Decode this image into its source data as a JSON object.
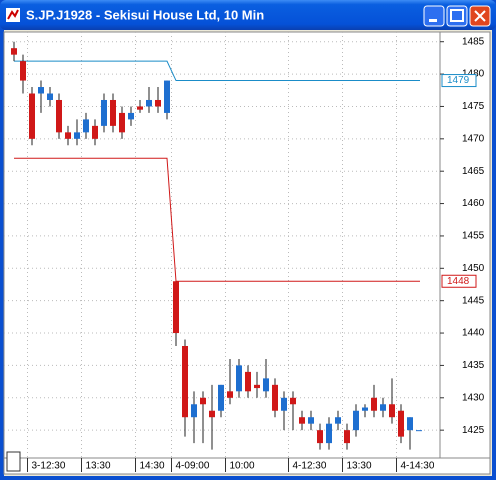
{
  "chart_data": {
    "type": "candlestick",
    "title": "S.JP.J1928 - Sekisui House Ltd, 10 Min",
    "categories": [
      null,
      null,
      "3-12:30",
      null,
      null,
      null,
      null,
      null,
      "13:30",
      null,
      null,
      null,
      null,
      null,
      "14:30",
      null,
      null,
      null,
      "4-09:00",
      null,
      null,
      null,
      null,
      null,
      "10:00",
      null,
      null,
      null,
      null,
      null,
      null,
      "4-12:30",
      null,
      null,
      null,
      null,
      null,
      "13:30",
      null,
      null,
      null,
      null,
      null,
      "4-14:30",
      null,
      null
    ],
    "open": [
      1484,
      1482,
      1477,
      1477,
      1476,
      1476,
      1471,
      1470,
      1471,
      1472,
      1472,
      1476,
      1474,
      1473,
      1475,
      1475,
      1476,
      1474,
      1448,
      1438,
      1427,
      1430,
      1428,
      1428,
      1431,
      1431,
      1434,
      1432,
      1431,
      1432,
      1428,
      1430,
      1427,
      1426,
      1425,
      1423,
      1426,
      1425,
      1425,
      1428,
      1430,
      1428,
      1429,
      1428,
      1425,
      1425
    ],
    "high": [
      1485,
      1483,
      1478,
      1479,
      1478,
      1477,
      1472,
      1473,
      1474,
      1473,
      1477,
      1477,
      1475,
      1475,
      1476,
      1478,
      1478,
      1479,
      1448,
      1439,
      1431,
      1431,
      1432,
      1432,
      1436,
      1436,
      1435,
      1434,
      1436,
      1433,
      1431,
      1431,
      1428,
      1428,
      1426,
      1427,
      1428,
      1426,
      1429,
      1429,
      1432,
      1430,
      1433,
      1429,
      1427,
      1425
    ],
    "low": [
      1482,
      1477,
      1469,
      1474,
      1475,
      1470,
      1469,
      1469,
      1470,
      1469,
      1471,
      1471,
      1470,
      1472,
      1474,
      1474,
      1474,
      1473,
      1438,
      1424,
      1423,
      1423,
      1422,
      1427,
      1429,
      1430,
      1430,
      1430,
      1430,
      1427,
      1425,
      1425,
      1425,
      1425,
      1422,
      1422,
      1425,
      1422,
      1424,
      1427,
      1427,
      1427,
      1426,
      1423,
      1422,
      1425
    ],
    "close": [
      1483,
      1479,
      1470,
      1478,
      1477,
      1471,
      1470,
      1471,
      1473,
      1470,
      1476,
      1472,
      1471,
      1474,
      1474.5,
      1476,
      1475,
      1479,
      1440,
      1427,
      1429,
      1429,
      1427,
      1432,
      1430,
      1435,
      1431,
      1431.5,
      1433,
      1428,
      1430,
      1429,
      1426,
      1427,
      1423,
      1426,
      1427,
      1423,
      1428,
      1428.5,
      1428,
      1429,
      1427,
      1424,
      1427,
      1425
    ],
    "up_color": "#1e6fd0",
    "down_color": "#d01818",
    "levels": [
      {
        "color": "#1a8cc8",
        "values": [
          1482,
          1482,
          1482,
          1482,
          1482,
          1482,
          1482,
          1482,
          1482,
          1482,
          1482,
          1482,
          1482,
          1482,
          1482,
          1482,
          1482,
          1482,
          1479,
          1479,
          1479,
          1479,
          1479,
          1479,
          1479,
          1479,
          1479,
          1479,
          1479,
          1479,
          1479,
          1479,
          1479,
          1479,
          1479,
          1479,
          1479,
          1479,
          1479,
          1479,
          1479,
          1479,
          1479,
          1479,
          1479,
          1479
        ]
      },
      {
        "color": "#d01818",
        "values": [
          1467,
          1467,
          1467,
          1467,
          1467,
          1467,
          1467,
          1467,
          1467,
          1467,
          1467,
          1467,
          1467,
          1467,
          1467,
          1467,
          1467,
          1467,
          1448,
          1448,
          1448,
          1448,
          1448,
          1448,
          1448,
          1448,
          1448,
          1448,
          1448,
          1448,
          1448,
          1448,
          1448,
          1448,
          1448,
          1448,
          1448,
          1448,
          1448,
          1448,
          1448,
          1448,
          1448,
          1448,
          1448,
          1448
        ]
      }
    ],
    "ylim": [
      1420.7,
      1486.5
    ],
    "yticks": [
      1425,
      1430,
      1435,
      1440,
      1445,
      1450,
      1455,
      1460,
      1465,
      1470,
      1475,
      1480,
      1485
    ],
    "grid": true
  }
}
